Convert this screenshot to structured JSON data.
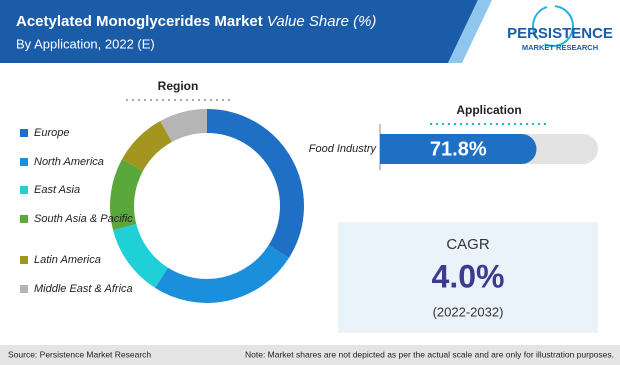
{
  "header": {
    "title": "Acetylated Monoglycerides Market",
    "title_suffix": "Value Share (%)",
    "subtitle": "By Application, 2022 (E)"
  },
  "logo": {
    "name": "PERSISTENCE",
    "tagline": "MARKET RESEARCH"
  },
  "chart_data": [
    {
      "type": "donut",
      "title": "Region",
      "categories": [
        "Europe",
        "North America",
        "East Asia",
        "South Asia & Pacific",
        "Latin America",
        "Middle East & Africa"
      ],
      "values": [
        34,
        25,
        12,
        12,
        9,
        8
      ],
      "colors": [
        "#1f6fc4",
        "#1b8fdc",
        "#1fd0d6",
        "#5aa83c",
        "#a39620",
        "#b5b5b5"
      ]
    },
    {
      "type": "bar",
      "title": "Application",
      "categories": [
        "Food Industry"
      ],
      "values": [
        71.8
      ],
      "value_labels": [
        "71.8%"
      ],
      "xlim": [
        0,
        100
      ],
      "color": "#1f6fc4",
      "track_color": "#e3e3e3"
    }
  ],
  "cagr": {
    "label": "CAGR",
    "value": "4.0%",
    "period": "(2022-2032)"
  },
  "footer": {
    "source": "Source: Persistence Market Research",
    "note": "Note: Market shares are not depicted as per the actual scale and are only for illustration purposes."
  }
}
